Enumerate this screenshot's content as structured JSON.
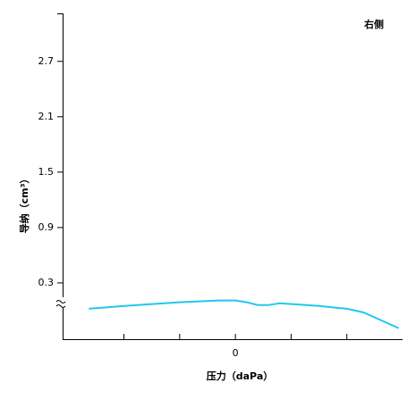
{
  "chart_data": {
    "type": "line",
    "title": "右侧",
    "x_label": "压力（daPa）",
    "y_label": "导纳（cm³）",
    "xlim": [
      -310,
      300
    ],
    "xticks": [
      0
    ],
    "minor_xticks": [
      -200,
      -100,
      100,
      200
    ],
    "ylim": [
      -0.31,
      3.22
    ],
    "yticks": [
      0.3,
      0.9,
      1.5,
      2.1,
      2.7
    ],
    "axis_break": true,
    "series": [
      {
        "color": "#1ec8f0",
        "x": [
          -263,
          -200,
          -100,
          -30,
          0,
          20,
          40,
          60,
          80,
          150,
          200,
          230,
          293
        ],
        "values": [
          0.02,
          0.05,
          0.09,
          0.11,
          0.11,
          0.09,
          0.06,
          0.06,
          0.08,
          0.05,
          0.02,
          -0.02,
          -0.19
        ]
      }
    ]
  }
}
